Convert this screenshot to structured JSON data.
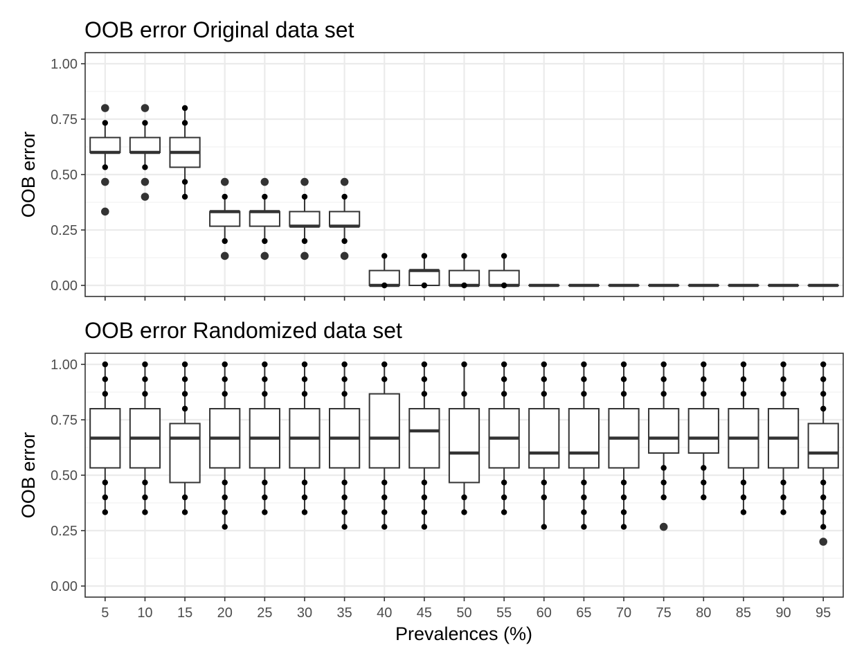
{
  "chart_data": [
    {
      "type": "boxplot",
      "title": "OOB error Original data set",
      "ylabel": "OOB error",
      "xlabel": "",
      "ylim": [
        -0.05,
        1.05
      ],
      "yticks": [
        "0.00",
        "0.25",
        "0.50",
        "0.75",
        "1.00"
      ],
      "show_x_tick_labels": false,
      "categories": [
        "5",
        "10",
        "15",
        "20",
        "25",
        "30",
        "35",
        "40",
        "45",
        "50",
        "55",
        "60",
        "65",
        "70",
        "75",
        "80",
        "85",
        "90",
        "95"
      ],
      "boxes": [
        {
          "q1": 0.6,
          "median": 0.6,
          "q3": 0.667,
          "wlo": 0.533,
          "whi": 0.733,
          "points": [
            0.533,
            0.733
          ],
          "outliers": [
            0.8,
            0.467,
            0.333
          ]
        },
        {
          "q1": 0.6,
          "median": 0.6,
          "q3": 0.667,
          "wlo": 0.533,
          "whi": 0.733,
          "points": [
            0.533,
            0.733
          ],
          "outliers": [
            0.8,
            0.467,
            0.4
          ]
        },
        {
          "q1": 0.533,
          "median": 0.6,
          "q3": 0.667,
          "wlo": 0.4,
          "whi": 0.8,
          "points": [
            0.4,
            0.467,
            0.733,
            0.8
          ],
          "outliers": []
        },
        {
          "q1": 0.267,
          "median": 0.333,
          "q3": 0.333,
          "wlo": 0.2,
          "whi": 0.4,
          "points": [
            0.2,
            0.4
          ],
          "outliers": [
            0.467,
            0.133
          ]
        },
        {
          "q1": 0.267,
          "median": 0.333,
          "q3": 0.333,
          "wlo": 0.2,
          "whi": 0.4,
          "points": [
            0.2,
            0.4
          ],
          "outliers": [
            0.467,
            0.133
          ]
        },
        {
          "q1": 0.267,
          "median": 0.267,
          "q3": 0.333,
          "wlo": 0.2,
          "whi": 0.4,
          "points": [
            0.2,
            0.4
          ],
          "outliers": [
            0.467,
            0.133
          ]
        },
        {
          "q1": 0.267,
          "median": 0.267,
          "q3": 0.333,
          "wlo": 0.2,
          "whi": 0.4,
          "points": [
            0.2,
            0.4
          ],
          "outliers": [
            0.467,
            0.133
          ]
        },
        {
          "q1": 0.0,
          "median": 0.0,
          "q3": 0.067,
          "wlo": 0.0,
          "whi": 0.133,
          "points": [
            0.0,
            0.133
          ],
          "outliers": []
        },
        {
          "q1": 0.0,
          "median": 0.067,
          "q3": 0.067,
          "wlo": 0.0,
          "whi": 0.133,
          "points": [
            0.0,
            0.133
          ],
          "outliers": []
        },
        {
          "q1": 0.0,
          "median": 0.0,
          "q3": 0.067,
          "wlo": 0.0,
          "whi": 0.133,
          "points": [
            0.0,
            0.133
          ],
          "outliers": []
        },
        {
          "q1": 0.0,
          "median": 0.0,
          "q3": 0.067,
          "wlo": 0.0,
          "whi": 0.133,
          "points": [
            0.0,
            0.133
          ],
          "outliers": []
        },
        {
          "q1": 0.0,
          "median": 0.0,
          "q3": 0.0,
          "wlo": 0.0,
          "whi": 0.0,
          "points": [],
          "outliers": []
        },
        {
          "q1": 0.0,
          "median": 0.0,
          "q3": 0.0,
          "wlo": 0.0,
          "whi": 0.0,
          "points": [],
          "outliers": []
        },
        {
          "q1": 0.0,
          "median": 0.0,
          "q3": 0.0,
          "wlo": 0.0,
          "whi": 0.0,
          "points": [],
          "outliers": []
        },
        {
          "q1": 0.0,
          "median": 0.0,
          "q3": 0.0,
          "wlo": 0.0,
          "whi": 0.0,
          "points": [],
          "outliers": []
        },
        {
          "q1": 0.0,
          "median": 0.0,
          "q3": 0.0,
          "wlo": 0.0,
          "whi": 0.0,
          "points": [],
          "outliers": []
        },
        {
          "q1": 0.0,
          "median": 0.0,
          "q3": 0.0,
          "wlo": 0.0,
          "whi": 0.0,
          "points": [],
          "outliers": []
        },
        {
          "q1": 0.0,
          "median": 0.0,
          "q3": 0.0,
          "wlo": 0.0,
          "whi": 0.0,
          "points": [],
          "outliers": []
        },
        {
          "q1": 0.0,
          "median": 0.0,
          "q3": 0.0,
          "wlo": 0.0,
          "whi": 0.0,
          "points": [],
          "outliers": []
        }
      ]
    },
    {
      "type": "boxplot",
      "title": "OOB error Randomized data set",
      "ylabel": "OOB error",
      "xlabel": "Prevalences (%)",
      "ylim": [
        -0.05,
        1.05
      ],
      "yticks": [
        "0.00",
        "0.25",
        "0.50",
        "0.75",
        "1.00"
      ],
      "show_x_tick_labels": true,
      "categories": [
        "5",
        "10",
        "15",
        "20",
        "25",
        "30",
        "35",
        "40",
        "45",
        "50",
        "55",
        "60",
        "65",
        "70",
        "75",
        "80",
        "85",
        "90",
        "95"
      ],
      "boxes": [
        {
          "q1": 0.533,
          "median": 0.667,
          "q3": 0.8,
          "wlo": 0.333,
          "whi": 1.0,
          "points": [
            0.333,
            0.4,
            0.467,
            0.867,
            0.933,
            1.0
          ],
          "outliers": []
        },
        {
          "q1": 0.533,
          "median": 0.667,
          "q3": 0.8,
          "wlo": 0.333,
          "whi": 1.0,
          "points": [
            0.333,
            0.4,
            0.467,
            0.867,
            0.933,
            1.0
          ],
          "outliers": []
        },
        {
          "q1": 0.467,
          "median": 0.667,
          "q3": 0.733,
          "wlo": 0.333,
          "whi": 1.0,
          "points": [
            0.333,
            0.4,
            0.8,
            0.867,
            0.933,
            1.0
          ],
          "outliers": []
        },
        {
          "q1": 0.533,
          "median": 0.667,
          "q3": 0.8,
          "wlo": 0.267,
          "whi": 1.0,
          "points": [
            0.267,
            0.333,
            0.4,
            0.467,
            0.867,
            0.933,
            1.0
          ],
          "outliers": []
        },
        {
          "q1": 0.533,
          "median": 0.667,
          "q3": 0.8,
          "wlo": 0.333,
          "whi": 1.0,
          "points": [
            0.333,
            0.4,
            0.467,
            0.867,
            0.933,
            1.0
          ],
          "outliers": []
        },
        {
          "q1": 0.533,
          "median": 0.667,
          "q3": 0.8,
          "wlo": 0.333,
          "whi": 1.0,
          "points": [
            0.333,
            0.4,
            0.467,
            0.867,
            0.933,
            1.0
          ],
          "outliers": []
        },
        {
          "q1": 0.533,
          "median": 0.667,
          "q3": 0.8,
          "wlo": 0.267,
          "whi": 1.0,
          "points": [
            0.267,
            0.333,
            0.4,
            0.467,
            0.867,
            0.933,
            1.0
          ],
          "outliers": []
        },
        {
          "q1": 0.533,
          "median": 0.667,
          "q3": 0.867,
          "wlo": 0.267,
          "whi": 1.0,
          "points": [
            0.267,
            0.333,
            0.4,
            0.467,
            0.933,
            1.0
          ],
          "outliers": []
        },
        {
          "q1": 0.533,
          "median": 0.7,
          "q3": 0.8,
          "wlo": 0.267,
          "whi": 1.0,
          "points": [
            0.267,
            0.333,
            0.4,
            0.467,
            0.867,
            0.933,
            1.0
          ],
          "outliers": []
        },
        {
          "q1": 0.467,
          "median": 0.6,
          "q3": 0.8,
          "wlo": 0.333,
          "whi": 1.0,
          "points": [
            0.333,
            0.4,
            0.867,
            1.0
          ],
          "outliers": []
        },
        {
          "q1": 0.533,
          "median": 0.667,
          "q3": 0.8,
          "wlo": 0.333,
          "whi": 1.0,
          "points": [
            0.333,
            0.4,
            0.467,
            0.867,
            0.933,
            1.0
          ],
          "outliers": []
        },
        {
          "q1": 0.533,
          "median": 0.6,
          "q3": 0.8,
          "wlo": 0.267,
          "whi": 1.0,
          "points": [
            0.267,
            0.4,
            0.467,
            0.867,
            0.933,
            1.0
          ],
          "outliers": []
        },
        {
          "q1": 0.533,
          "median": 0.6,
          "q3": 0.8,
          "wlo": 0.267,
          "whi": 1.0,
          "points": [
            0.267,
            0.333,
            0.4,
            0.467,
            0.867,
            0.933,
            1.0
          ],
          "outliers": []
        },
        {
          "q1": 0.533,
          "median": 0.667,
          "q3": 0.8,
          "wlo": 0.267,
          "whi": 1.0,
          "points": [
            0.267,
            0.333,
            0.4,
            0.467,
            0.867,
            0.933,
            1.0
          ],
          "outliers": []
        },
        {
          "q1": 0.6,
          "median": 0.667,
          "q3": 0.8,
          "wlo": 0.4,
          "whi": 1.0,
          "points": [
            0.4,
            0.467,
            0.533,
            0.867,
            0.933,
            1.0
          ],
          "outliers": [
            0.267
          ]
        },
        {
          "q1": 0.6,
          "median": 0.667,
          "q3": 0.8,
          "wlo": 0.4,
          "whi": 1.0,
          "points": [
            0.4,
            0.467,
            0.533,
            0.867,
            0.933,
            1.0
          ],
          "outliers": []
        },
        {
          "q1": 0.533,
          "median": 0.667,
          "q3": 0.8,
          "wlo": 0.333,
          "whi": 1.0,
          "points": [
            0.333,
            0.4,
            0.467,
            0.867,
            0.933,
            1.0
          ],
          "outliers": []
        },
        {
          "q1": 0.533,
          "median": 0.667,
          "q3": 0.8,
          "wlo": 0.333,
          "whi": 1.0,
          "points": [
            0.333,
            0.4,
            0.467,
            0.867,
            0.933,
            1.0
          ],
          "outliers": []
        },
        {
          "q1": 0.533,
          "median": 0.6,
          "q3": 0.733,
          "wlo": 0.267,
          "whi": 1.0,
          "points": [
            0.267,
            0.333,
            0.4,
            0.467,
            0.8,
            0.867,
            0.933,
            1.0
          ],
          "outliers": [
            0.2
          ]
        }
      ]
    }
  ]
}
